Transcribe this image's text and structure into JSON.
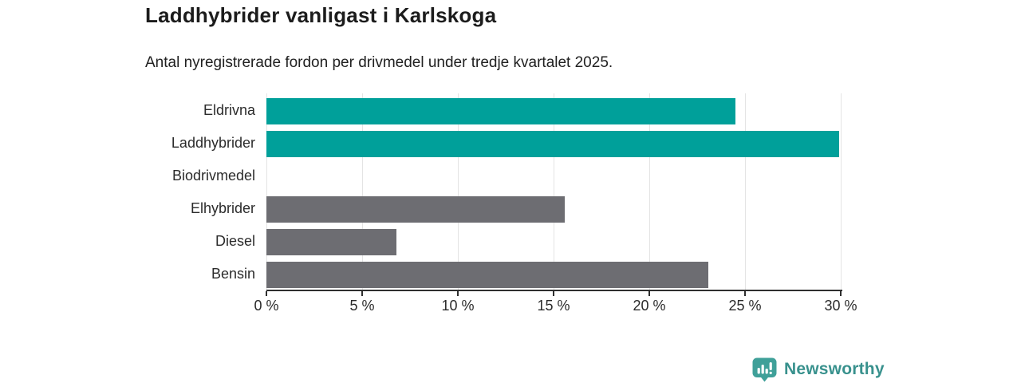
{
  "chart_data": {
    "type": "bar",
    "orientation": "horizontal",
    "title": "Laddhybrider vanligast i Karlskoga",
    "subtitle": "Antal nyregistrerade fordon per drivmedel under tredje kvartalet 2025.",
    "categories": [
      "Eldrivna",
      "Laddhybrider",
      "Biodrivmedel",
      "Elhybrider",
      "Diesel",
      "Bensin"
    ],
    "values": [
      24.5,
      29.9,
      0,
      15.6,
      6.8,
      23.1
    ],
    "unit": "%",
    "bar_colors": [
      "#00a09a",
      "#00a09a",
      "#6d6d72",
      "#6d6d72",
      "#6d6d72",
      "#6d6d72"
    ],
    "highlight_color": "#00a09a",
    "base_color": "#6d6d72",
    "xlabel": "",
    "ylabel": "",
    "xlim": [
      0,
      30
    ],
    "x_ticks": [
      0,
      5,
      10,
      15,
      20,
      25,
      30
    ],
    "x_tick_labels": [
      "0 %",
      "5 %",
      "10 %",
      "15 %",
      "20 %",
      "25 %",
      "30 %"
    ],
    "grid": "vertical gridlines",
    "gridline_color": "#e4e4e4",
    "axis_color": "#2f2f2f",
    "legend": "none"
  },
  "branding": {
    "logo_text": "Newsworthy",
    "logo_icon": "speech-bubble-bar-chart",
    "logo_text_color": "#38918d",
    "logo_icon_color": "#3fa099"
  }
}
